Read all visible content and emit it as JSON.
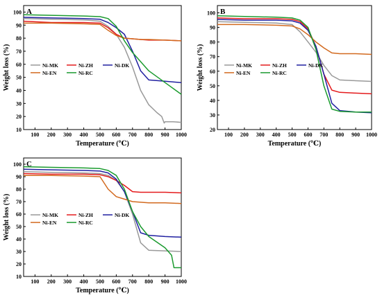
{
  "figure": {
    "background": "#ffffff"
  },
  "chart_data": [
    {
      "type": "line",
      "panel": "A",
      "xlabel": "Temperature (℃)",
      "ylabel": "Weight loss (%)",
      "xlim": [
        30,
        1000
      ],
      "ylim": [
        10,
        105
      ],
      "xticks": [
        100,
        200,
        300,
        400,
        500,
        600,
        700,
        800,
        900,
        1000
      ],
      "yticks": [
        10,
        20,
        30,
        40,
        50,
        60,
        70,
        80,
        90,
        100
      ],
      "legend_position": "center-left",
      "series": [
        {
          "name": "Ni-MK",
          "color": "#999999",
          "x": [
            30,
            200,
            400,
            500,
            550,
            600,
            650,
            700,
            750,
            800,
            850,
            880,
            895,
            900,
            950,
            1000
          ],
          "y": [
            95,
            94.5,
            94,
            93,
            89,
            83,
            73,
            58,
            40,
            29,
            23,
            20,
            15,
            16,
            16,
            15.5
          ]
        },
        {
          "name": "Ni-ZH",
          "color": "#e41a1c",
          "x": [
            30,
            200,
            400,
            500,
            550,
            600,
            650,
            700,
            750,
            800,
            900,
            1000
          ],
          "y": [
            93,
            92,
            92,
            91.5,
            88,
            83,
            80,
            79.5,
            79,
            78.5,
            78.5,
            78
          ]
        },
        {
          "name": "Ni-DK",
          "color": "#1f1fa0",
          "x": [
            30,
            200,
            400,
            500,
            550,
            600,
            650,
            700,
            750,
            800,
            900,
            1000
          ],
          "y": [
            96,
            95.5,
            95,
            94.5,
            92,
            88,
            83,
            70,
            55,
            48,
            47,
            46
          ]
        },
        {
          "name": "Ni-EN",
          "color": "#d2691e",
          "x": [
            30,
            200,
            400,
            500,
            550,
            600,
            650,
            700,
            750,
            800,
            900,
            1000
          ],
          "y": [
            91.5,
            91.5,
            91,
            90.5,
            86,
            82,
            80,
            79.5,
            79,
            79,
            78.5,
            78
          ]
        },
        {
          "name": "Ni-RC",
          "color": "#1a9a2e",
          "x": [
            30,
            200,
            400,
            500,
            550,
            600,
            650,
            700,
            750,
            800,
            900,
            1000
          ],
          "y": [
            98,
            97.5,
            97,
            96.5,
            95,
            89,
            78,
            69,
            62,
            55,
            46,
            37
          ]
        }
      ]
    },
    {
      "type": "line",
      "panel": "B",
      "xlabel": "Temperature (℃)",
      "ylabel": "Weight loss (%)",
      "xlim": [
        30,
        1000
      ],
      "ylim": [
        20,
        105
      ],
      "xticks": [
        100,
        200,
        300,
        400,
        500,
        600,
        700,
        800,
        900,
        1000
      ],
      "yticks": [
        20,
        30,
        40,
        50,
        60,
        70,
        80,
        90,
        100
      ],
      "legend_position": "center-left",
      "series": [
        {
          "name": "Ni-MK",
          "color": "#999999",
          "x": [
            30,
            200,
            400,
            500,
            550,
            600,
            650,
            700,
            750,
            800,
            900,
            1000
          ],
          "y": [
            94,
            93.5,
            93,
            92,
            87,
            80,
            73,
            64,
            57,
            54,
            53.5,
            53
          ]
        },
        {
          "name": "Ni-ZH",
          "color": "#e41a1c",
          "x": [
            30,
            200,
            400,
            500,
            550,
            600,
            650,
            700,
            750,
            800,
            900,
            1000
          ],
          "y": [
            96.5,
            96,
            96,
            95.5,
            94,
            89,
            77,
            58,
            47,
            45.5,
            45,
            44.5
          ]
        },
        {
          "name": "Ni-DK",
          "color": "#1f1fa0",
          "x": [
            30,
            200,
            400,
            500,
            550,
            600,
            650,
            700,
            750,
            800,
            900,
            1000
          ],
          "y": [
            95.5,
            95,
            95,
            94.5,
            93,
            88,
            77,
            58,
            38,
            33,
            32,
            31.5
          ]
        },
        {
          "name": "Ni-EN",
          "color": "#d2691e",
          "x": [
            30,
            200,
            400,
            500,
            550,
            600,
            650,
            700,
            750,
            800,
            900,
            1000
          ],
          "y": [
            92,
            92,
            91.5,
            91,
            89,
            85,
            80,
            76,
            72.5,
            72,
            72,
            71.5
          ]
        },
        {
          "name": "Ni-RC",
          "color": "#1a9a2e",
          "x": [
            30,
            200,
            400,
            500,
            550,
            600,
            650,
            700,
            750,
            800,
            900,
            1000
          ],
          "y": [
            98,
            97.5,
            97,
            96.5,
            95,
            90,
            75,
            50,
            34,
            32.5,
            32,
            32
          ]
        }
      ]
    },
    {
      "type": "line",
      "panel": "C",
      "xlabel": "Temperature (℃)",
      "ylabel": "Weight loss (%)",
      "xlim": [
        30,
        1000
      ],
      "ylim": [
        10,
        105
      ],
      "xticks": [
        100,
        200,
        300,
        400,
        500,
        600,
        700,
        800,
        900,
        1000
      ],
      "yticks": [
        10,
        20,
        30,
        40,
        50,
        60,
        70,
        80,
        90,
        100
      ],
      "legend_position": "center-left",
      "series": [
        {
          "name": "Ni-MK",
          "color": "#999999",
          "x": [
            30,
            200,
            400,
            500,
            550,
            600,
            650,
            700,
            750,
            800,
            900,
            1000
          ],
          "y": [
            94,
            93.5,
            93,
            92.5,
            91,
            87,
            78,
            60,
            37,
            31,
            30.5,
            30
          ]
        },
        {
          "name": "Ni-ZH",
          "color": "#e41a1c",
          "x": [
            30,
            200,
            400,
            500,
            550,
            600,
            650,
            700,
            750,
            800,
            900,
            1000
          ],
          "y": [
            92.5,
            92,
            92,
            91.5,
            90,
            87,
            83,
            78,
            77.5,
            77.5,
            77.5,
            77
          ]
        },
        {
          "name": "Ni-DK",
          "color": "#1f1fa0",
          "x": [
            30,
            200,
            400,
            500,
            550,
            600,
            650,
            700,
            750,
            800,
            900,
            1000
          ],
          "y": [
            96,
            95.5,
            95,
            94.5,
            93,
            88,
            78,
            62,
            45,
            43,
            42,
            41.5
          ]
        },
        {
          "name": "Ni-EN",
          "color": "#d2691e",
          "x": [
            30,
            200,
            400,
            500,
            550,
            600,
            650,
            700,
            750,
            800,
            900,
            1000
          ],
          "y": [
            91,
            91,
            90.5,
            90,
            80,
            74,
            72,
            70,
            69.5,
            69,
            69,
            68.5
          ]
        },
        {
          "name": "Ni-RC",
          "color": "#1a9a2e",
          "x": [
            30,
            200,
            400,
            500,
            550,
            600,
            650,
            700,
            750,
            800,
            900,
            940,
            955,
            1000
          ],
          "y": [
            98,
            97.5,
            97,
            96.5,
            95,
            91,
            80,
            62,
            50,
            42,
            33,
            27,
            17,
            17
          ]
        }
      ]
    }
  ]
}
